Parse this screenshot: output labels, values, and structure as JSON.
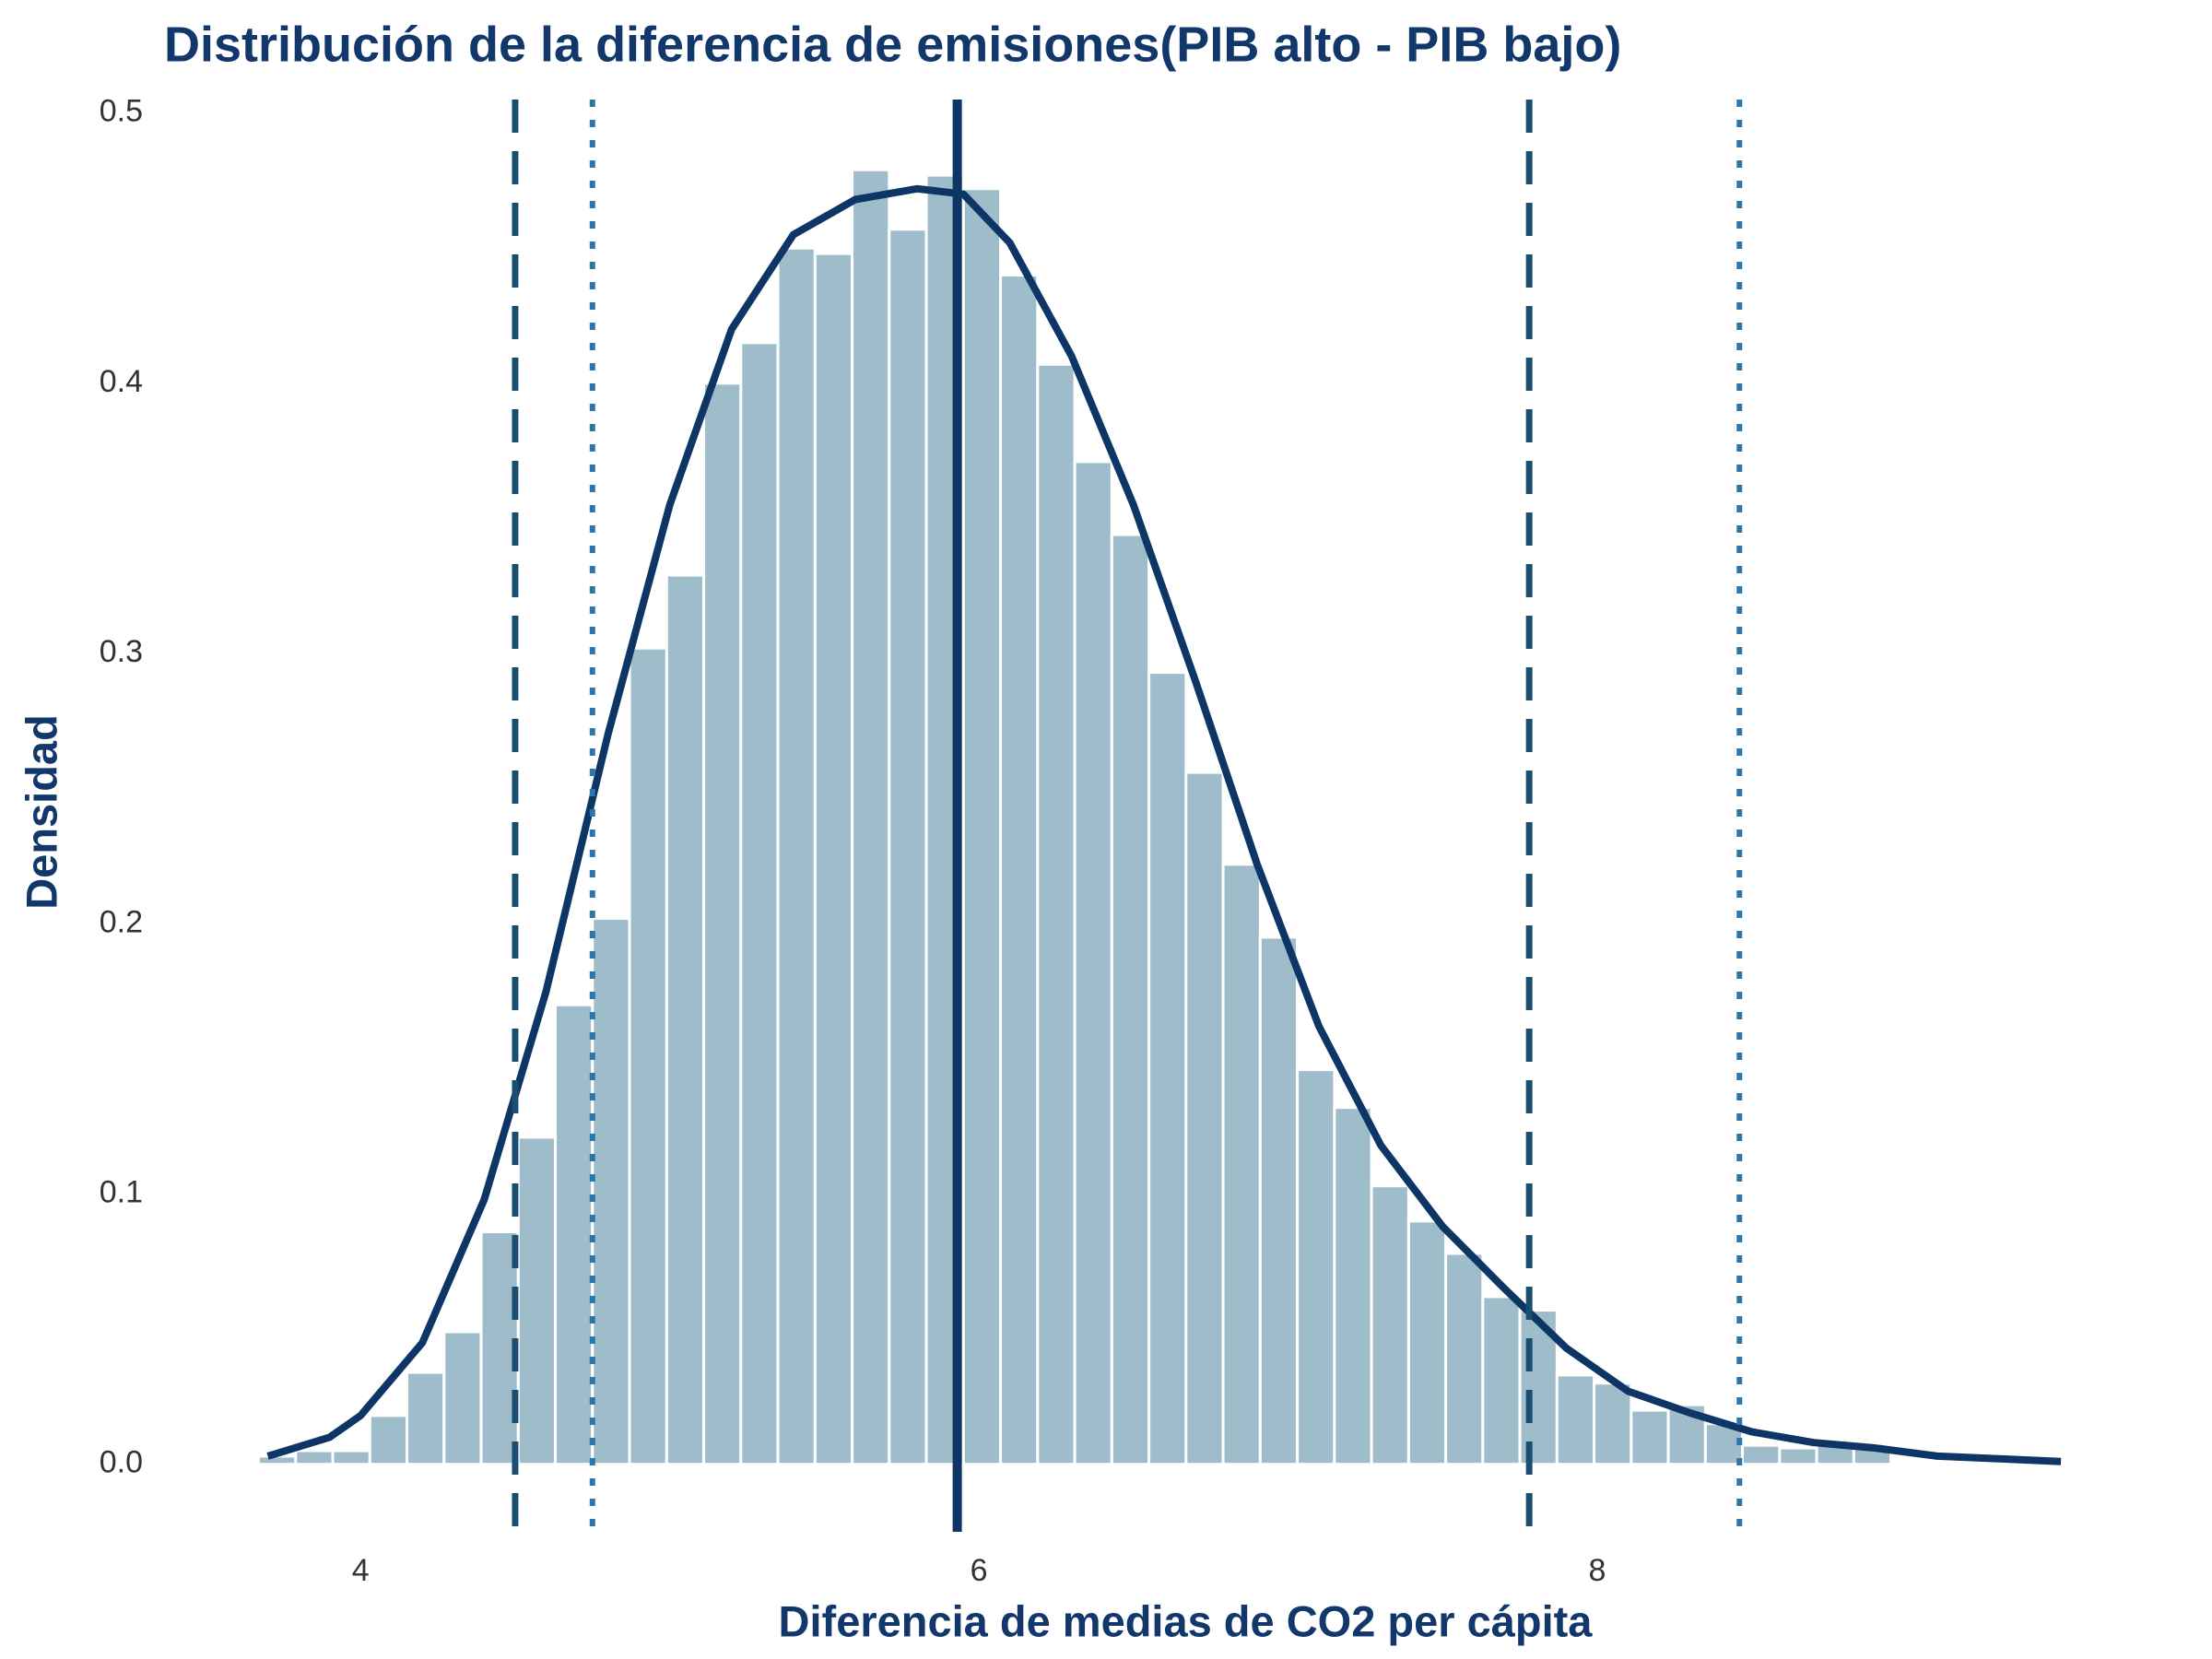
{
  "chart_data": {
    "type": "histogram",
    "title": "Distribución de la diferencia de emisiones(PIB alto - PIB bajo)",
    "x_label": "Diferencia de medias de CO2 per cápita",
    "y_label": "Densidad",
    "bins": [
      3.67,
      3.79,
      3.91,
      4.03,
      4.15,
      4.27,
      4.39,
      4.51,
      4.63,
      4.75,
      4.87,
      4.99,
      5.11,
      5.23,
      5.35,
      5.47,
      5.59,
      5.71,
      5.83,
      5.95,
      6.07,
      6.19,
      6.31,
      6.43,
      6.55,
      6.67,
      6.79,
      6.91,
      7.03,
      7.15,
      7.27,
      7.39,
      7.51,
      7.63,
      7.75,
      7.87,
      7.99,
      8.11,
      8.23,
      8.35,
      8.47,
      8.59,
      8.71,
      8.83,
      8.95
    ],
    "values": [
      0.003,
      0.005,
      0.005,
      0.018,
      0.034,
      0.049,
      0.086,
      0.121,
      0.17,
      0.202,
      0.302,
      0.329,
      0.4,
      0.415,
      0.45,
      0.448,
      0.479,
      0.457,
      0.477,
      0.472,
      0.44,
      0.407,
      0.371,
      0.344,
      0.293,
      0.256,
      0.222,
      0.195,
      0.146,
      0.132,
      0.103,
      0.09,
      0.078,
      0.062,
      0.057,
      0.033,
      0.03,
      0.02,
      0.022,
      0.015,
      0.007,
      0.006,
      0.007,
      0.006
    ],
    "color": "#9fbccb",
    "density": {
      "color": "#0d3566",
      "x": [
        3.7,
        3.9,
        4.0,
        4.2,
        4.4,
        4.6,
        4.8,
        5.0,
        5.2,
        5.4,
        5.6,
        5.8,
        5.95,
        6.1,
        6.3,
        6.5,
        6.7,
        6.9,
        7.1,
        7.3,
        7.5,
        7.7,
        7.9,
        8.1,
        8.3,
        8.5,
        8.7,
        8.9,
        9.1,
        9.3,
        9.5
      ],
      "values": [
        0.003,
        0.01,
        0.018,
        0.045,
        0.098,
        0.175,
        0.27,
        0.355,
        0.42,
        0.455,
        0.468,
        0.472,
        0.47,
        0.452,
        0.41,
        0.355,
        0.29,
        0.222,
        0.162,
        0.118,
        0.088,
        0.065,
        0.043,
        0.027,
        0.019,
        0.012,
        0.008,
        0.006,
        0.003,
        0.002,
        0.001
      ]
    },
    "vlines": [
      {
        "value": 5.93,
        "style": "solid",
        "color": "#0d3566"
      },
      {
        "value": 4.5,
        "style": "dashed",
        "color": "#1b4f72"
      },
      {
        "value": 7.78,
        "style": "dashed",
        "color": "#1b4f72"
      },
      {
        "value": 4.75,
        "style": "dotted",
        "color": "#2e75a8"
      },
      {
        "value": 8.46,
        "style": "dotted",
        "color": "#2e75a8"
      }
    ],
    "xlim": [
      3.57,
      9.61
    ],
    "xticks": [
      4,
      6,
      8
    ],
    "ylim": [
      -0.025,
      0.505
    ],
    "yticks": [
      {
        "value": 0,
        "label": "0.0"
      },
      0.1,
      0.2,
      0.3,
      0.4,
      0.5
    ],
    "grid": false
  }
}
